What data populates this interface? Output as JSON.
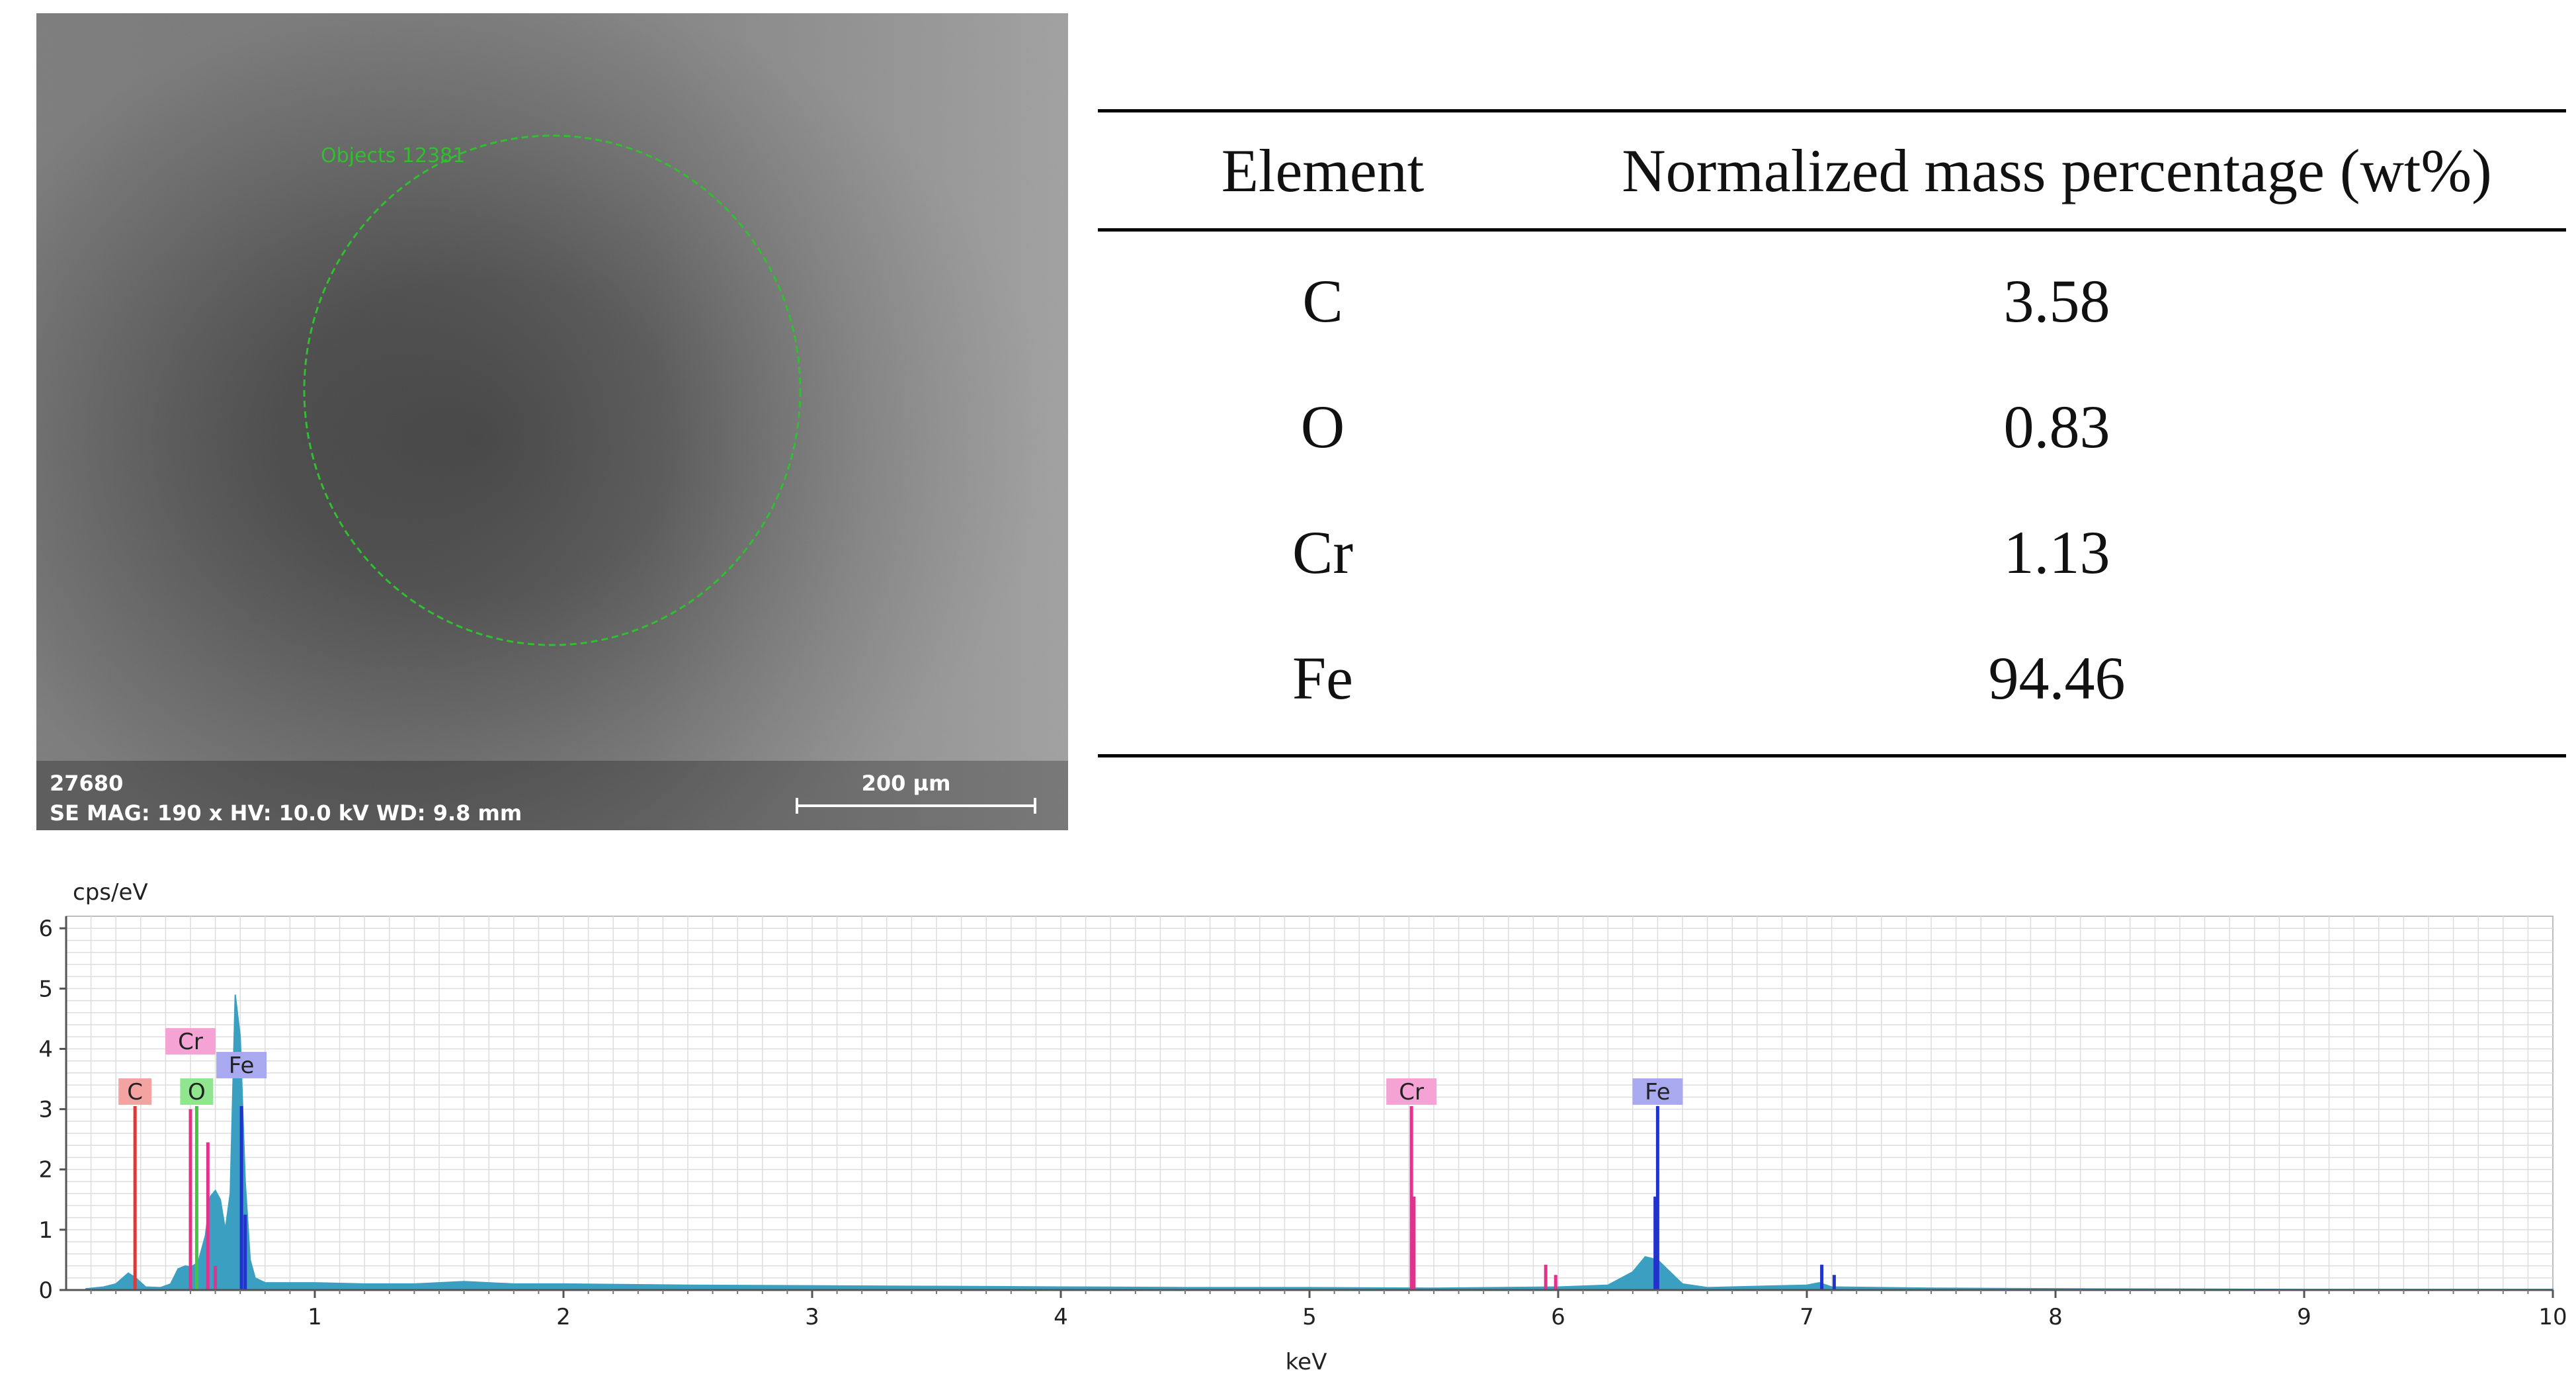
{
  "sem_image": {
    "roi_label": "Objects 12381",
    "sample_id": "27680",
    "info": "SE  MAG: 190 x  HV: 10.0 kV  WD: 9.8 mm",
    "scale_bar_label": "200 µm"
  },
  "composition_table": {
    "headers": [
      "Element",
      "Normalized mass percentage (wt%)"
    ],
    "rows": [
      {
        "element": "C",
        "value": "3.58"
      },
      {
        "element": "O",
        "value": "0.83"
      },
      {
        "element": "Cr",
        "value": "1.13"
      },
      {
        "element": "Fe",
        "value": "94.46"
      }
    ]
  },
  "chart_data": {
    "type": "bar",
    "title": "",
    "ylabel": "cps/eV",
    "xlabel": "keV",
    "xlim": [
      0,
      10
    ],
    "ylim": [
      0,
      6.2
    ],
    "x_ticks": [
      1,
      2,
      3,
      4,
      5,
      6,
      7,
      8,
      9,
      10
    ],
    "y_ticks": [
      0,
      1,
      2,
      3,
      4,
      5,
      6
    ],
    "grid": true,
    "spectrum": {
      "color": "#3a9fc0",
      "x": [
        0.08,
        0.15,
        0.2,
        0.25,
        0.28,
        0.32,
        0.38,
        0.42,
        0.45,
        0.48,
        0.5,
        0.53,
        0.56,
        0.58,
        0.6,
        0.62,
        0.64,
        0.66,
        0.68,
        0.7,
        0.72,
        0.74,
        0.76,
        0.8,
        0.9,
        1.0,
        1.2,
        1.4,
        1.6,
        1.7,
        1.8,
        2.0,
        2.5,
        3.0,
        3.5,
        4.0,
        4.5,
        5.0,
        5.5,
        6.0,
        6.2,
        6.3,
        6.35,
        6.4,
        6.45,
        6.5,
        6.6,
        7.0,
        7.05,
        7.1,
        7.5,
        8.0,
        9.0,
        10.0
      ],
      "y": [
        0.02,
        0.05,
        0.1,
        0.28,
        0.2,
        0.05,
        0.04,
        0.1,
        0.35,
        0.4,
        0.38,
        0.45,
        0.9,
        1.55,
        1.65,
        1.5,
        1.0,
        1.6,
        4.9,
        4.2,
        1.8,
        0.5,
        0.2,
        0.12,
        0.12,
        0.12,
        0.1,
        0.1,
        0.14,
        0.12,
        0.1,
        0.1,
        0.08,
        0.07,
        0.06,
        0.05,
        0.04,
        0.04,
        0.03,
        0.05,
        0.08,
        0.3,
        0.55,
        0.5,
        0.3,
        0.1,
        0.04,
        0.08,
        0.12,
        0.05,
        0.03,
        0.02,
        0.01,
        0.01
      ]
    },
    "lines": [
      {
        "x": 0.277,
        "y": 3.05,
        "color": "#d93a3a"
      },
      {
        "x": 0.5,
        "y": 3.0,
        "color": "#e0338c"
      },
      {
        "x": 0.525,
        "y": 3.05,
        "color": "#44c444"
      },
      {
        "x": 0.57,
        "y": 2.45,
        "color": "#e0338c"
      },
      {
        "x": 0.6,
        "y": 0.4,
        "color": "#e0338c"
      },
      {
        "x": 0.705,
        "y": 3.05,
        "color": "#2233cc"
      },
      {
        "x": 0.72,
        "y": 1.25,
        "color": "#2233cc"
      },
      {
        "x": 5.41,
        "y": 3.05,
        "color": "#e0338c"
      },
      {
        "x": 5.42,
        "y": 1.55,
        "color": "#e0338c"
      },
      {
        "x": 5.95,
        "y": 0.42,
        "color": "#e0338c"
      },
      {
        "x": 5.99,
        "y": 0.25,
        "color": "#e0338c"
      },
      {
        "x": 6.39,
        "y": 1.55,
        "color": "#2233cc"
      },
      {
        "x": 6.4,
        "y": 3.05,
        "color": "#2233cc"
      },
      {
        "x": 7.06,
        "y": 0.42,
        "color": "#2233cc"
      },
      {
        "x": 7.11,
        "y": 0.25,
        "color": "#2233cc"
      }
    ],
    "element_tags": [
      {
        "label": "C",
        "x": 0.277,
        "level": 1,
        "color": "#f4a3a3"
      },
      {
        "label": "O",
        "x": 0.525,
        "level": 1,
        "color": "#8fe68f"
      },
      {
        "label": "Cr",
        "x": 0.5,
        "level": 3,
        "color": "#f5a3d4"
      },
      {
        "label": "Fe",
        "x": 0.705,
        "level": 2,
        "color": "#a9a9f0"
      },
      {
        "label": "Cr",
        "x": 5.41,
        "level": 1,
        "color": "#f5a3d4"
      },
      {
        "label": "Fe",
        "x": 6.4,
        "level": 1,
        "color": "#a9a9f0"
      }
    ]
  }
}
